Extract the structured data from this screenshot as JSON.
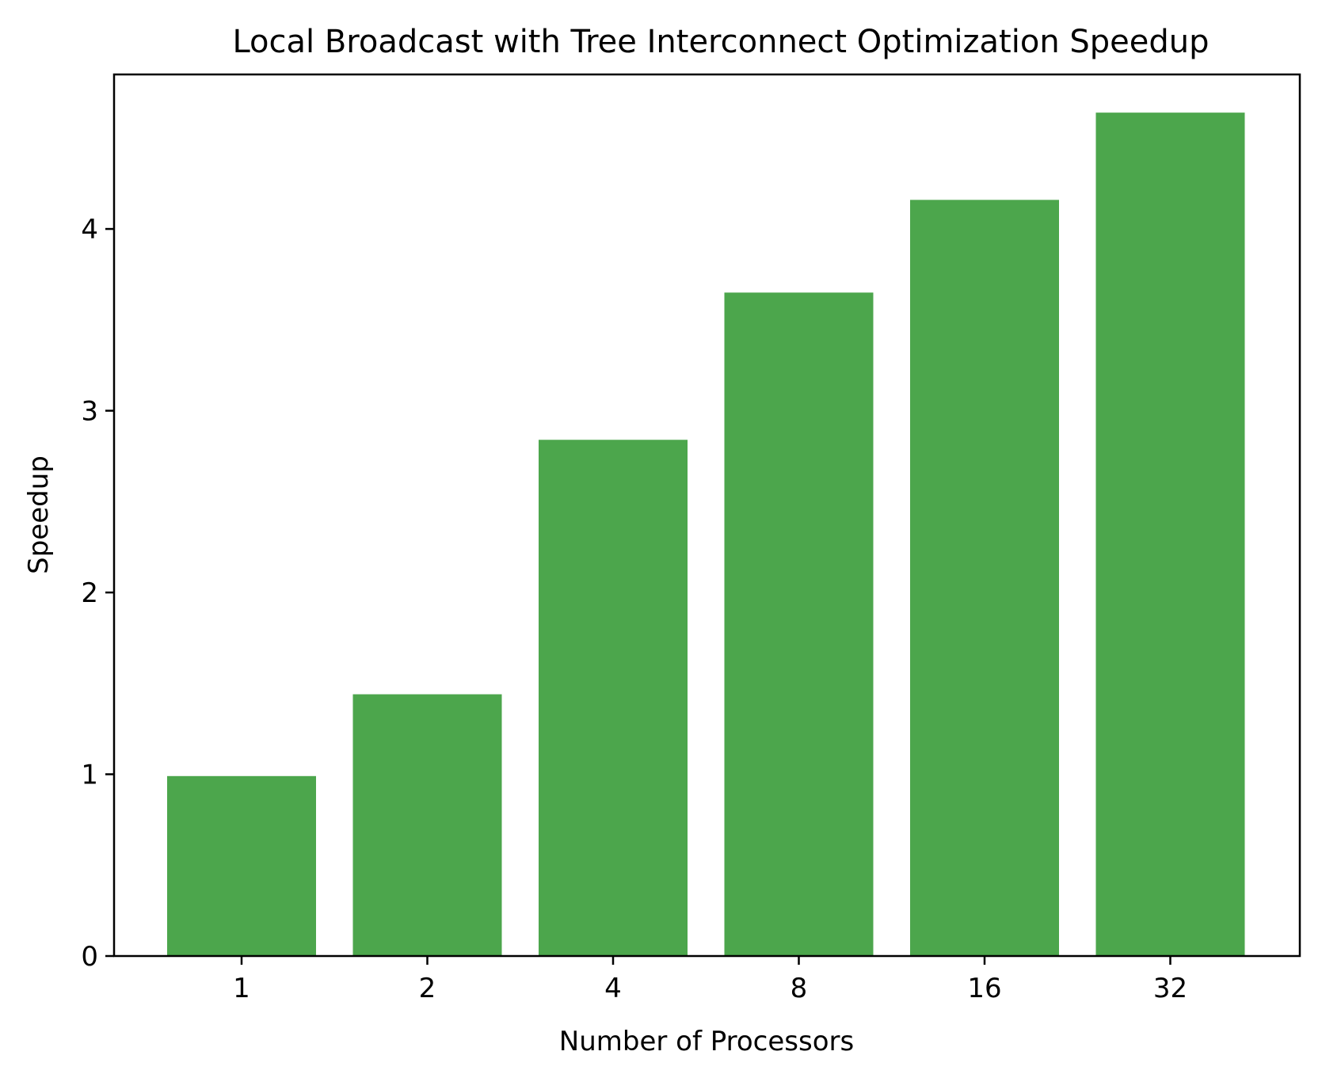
{
  "chart_data": {
    "type": "bar",
    "title": "Local Broadcast with Tree Interconnect Optimization Speedup",
    "xlabel": "Number of Processors",
    "ylabel": "Speedup",
    "categories": [
      "1",
      "2",
      "4",
      "8",
      "16",
      "32"
    ],
    "values": [
      0.99,
      1.44,
      2.84,
      3.65,
      4.16,
      4.64
    ],
    "ylim": [
      0,
      4.85
    ],
    "yticks": [
      "0",
      "1",
      "2",
      "3",
      "4"
    ],
    "grid": false,
    "legend": "none",
    "bar_color": "#4CA64C"
  }
}
